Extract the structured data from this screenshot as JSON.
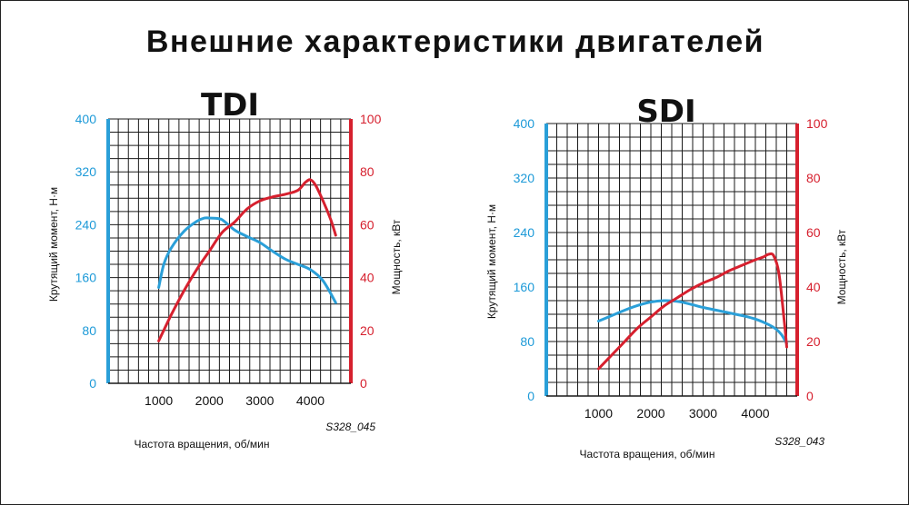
{
  "page": {
    "title": "Внешние характеристики двигателей"
  },
  "colors": {
    "torque": "#2a9fd8",
    "power": "#d6202e",
    "grid": "#1a1a1a"
  },
  "chart_data": [
    {
      "type": "line",
      "title": "TDI",
      "code": "S328_045",
      "xlabel": "Частота вращения, об/мин",
      "ylabel_left": "Крутящий момент, Н·м",
      "ylabel_right": "Мощность, кВт",
      "xlim": [
        0,
        4800
      ],
      "x_ticks": [
        1000,
        2000,
        3000,
        4000
      ],
      "ylim_left": [
        0,
        400
      ],
      "y_ticks_left": [
        0,
        80,
        160,
        240,
        320,
        400
      ],
      "ylim_right": [
        0,
        100
      ],
      "y_ticks_right": [
        0,
        20,
        40,
        60,
        80,
        100
      ],
      "grid": true,
      "series": [
        {
          "axis": "left",
          "x": [
            1000,
            1100,
            1250,
            1500,
            1750,
            1900,
            2000,
            2200,
            2300,
            2500,
            2750,
            3000,
            3250,
            3500,
            3750,
            4000,
            4250,
            4500
          ],
          "values": [
            145,
            180,
            205,
            230,
            245,
            250,
            250,
            249,
            245,
            232,
            222,
            213,
            200,
            188,
            180,
            172,
            155,
            122
          ]
        },
        {
          "axis": "right",
          "x": [
            1000,
            1250,
            1500,
            1750,
            2000,
            2250,
            2500,
            2750,
            3000,
            3250,
            3500,
            3750,
            3900,
            4000,
            4100,
            4250,
            4400,
            4500
          ],
          "values": [
            16,
            26,
            35,
            43,
            50,
            57,
            61,
            66,
            69,
            70.5,
            71.5,
            73,
            76,
            77,
            75,
            69,
            62,
            56
          ]
        }
      ]
    },
    {
      "type": "line",
      "title": "SDI",
      "code": "S328_043",
      "xlabel": "Частота вращения, об/мин",
      "ylabel_left": "Крутящий момент, Н·м",
      "ylabel_right": "Мощность, кВт",
      "xlim": [
        0,
        4800
      ],
      "x_ticks": [
        1000,
        2000,
        3000,
        4000
      ],
      "ylim_left": [
        0,
        400
      ],
      "y_ticks_left": [
        0,
        80,
        160,
        240,
        320,
        400
      ],
      "ylim_right": [
        0,
        100
      ],
      "y_ticks_right": [
        0,
        20,
        40,
        60,
        80,
        100
      ],
      "grid": true,
      "series": [
        {
          "axis": "left",
          "x": [
            1000,
            1250,
            1500,
            1750,
            2000,
            2250,
            2500,
            2750,
            3000,
            3250,
            3500,
            3750,
            4000,
            4250,
            4400,
            4500,
            4600
          ],
          "values": [
            110,
            118,
            126,
            133,
            138,
            140,
            139,
            135,
            130,
            126,
            122,
            118,
            113,
            105,
            98,
            90,
            77
          ]
        },
        {
          "axis": "right",
          "x": [
            1000,
            1250,
            1500,
            1750,
            2000,
            2250,
            2500,
            2750,
            3000,
            3250,
            3500,
            3750,
            4000,
            4150,
            4250,
            4350,
            4450,
            4550,
            4600
          ],
          "values": [
            10,
            15,
            20,
            25,
            29,
            33,
            36,
            39,
            41.5,
            43.5,
            46,
            48,
            50,
            51,
            52,
            51.5,
            45,
            28,
            18
          ]
        }
      ]
    }
  ]
}
